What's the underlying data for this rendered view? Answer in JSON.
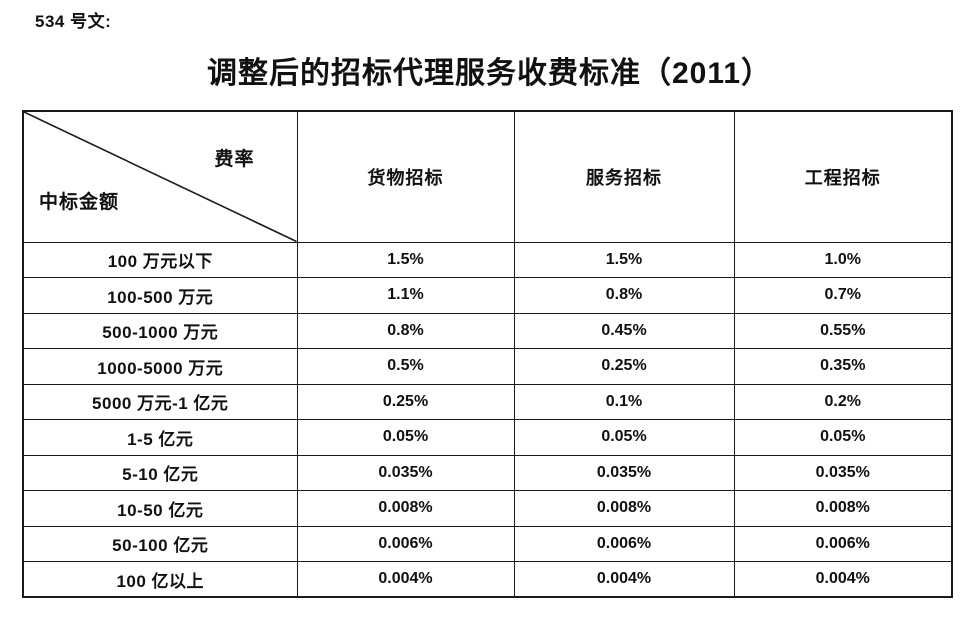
{
  "doc_label": "534 号文:",
  "title": "调整后的招标代理服务收费标准（2011）",
  "table": {
    "corner": {
      "top_right": "费率",
      "bottom_left": "中标金额"
    },
    "columns": [
      "货物招标",
      "服务招标",
      "工程招标"
    ],
    "rows": [
      {
        "label": "100 万元以下",
        "values": [
          "1.5%",
          "1.5%",
          "1.0%"
        ]
      },
      {
        "label": "100-500 万元",
        "values": [
          "1.1%",
          "0.8%",
          "0.7%"
        ]
      },
      {
        "label": "500-1000 万元",
        "values": [
          "0.8%",
          "0.45%",
          "0.55%"
        ]
      },
      {
        "label": "1000-5000 万元",
        "values": [
          "0.5%",
          "0.25%",
          "0.35%"
        ]
      },
      {
        "label": "5000 万元-1 亿元",
        "values": [
          "0.25%",
          "0.1%",
          "0.2%"
        ]
      },
      {
        "label": "1-5 亿元",
        "values": [
          "0.05%",
          "0.05%",
          "0.05%"
        ]
      },
      {
        "label": "5-10 亿元",
        "values": [
          "0.035%",
          "0.035%",
          "0.035%"
        ]
      },
      {
        "label": "10-50 亿元",
        "values": [
          "0.008%",
          "0.008%",
          "0.008%"
        ]
      },
      {
        "label": "50-100 亿元",
        "values": [
          "0.006%",
          "0.006%",
          "0.006%"
        ]
      },
      {
        "label": "100 亿以上",
        "values": [
          "0.004%",
          "0.004%",
          "0.004%"
        ]
      }
    ]
  },
  "colors": {
    "text": "#111111",
    "border": "#1a1a1a",
    "background": "#ffffff"
  }
}
